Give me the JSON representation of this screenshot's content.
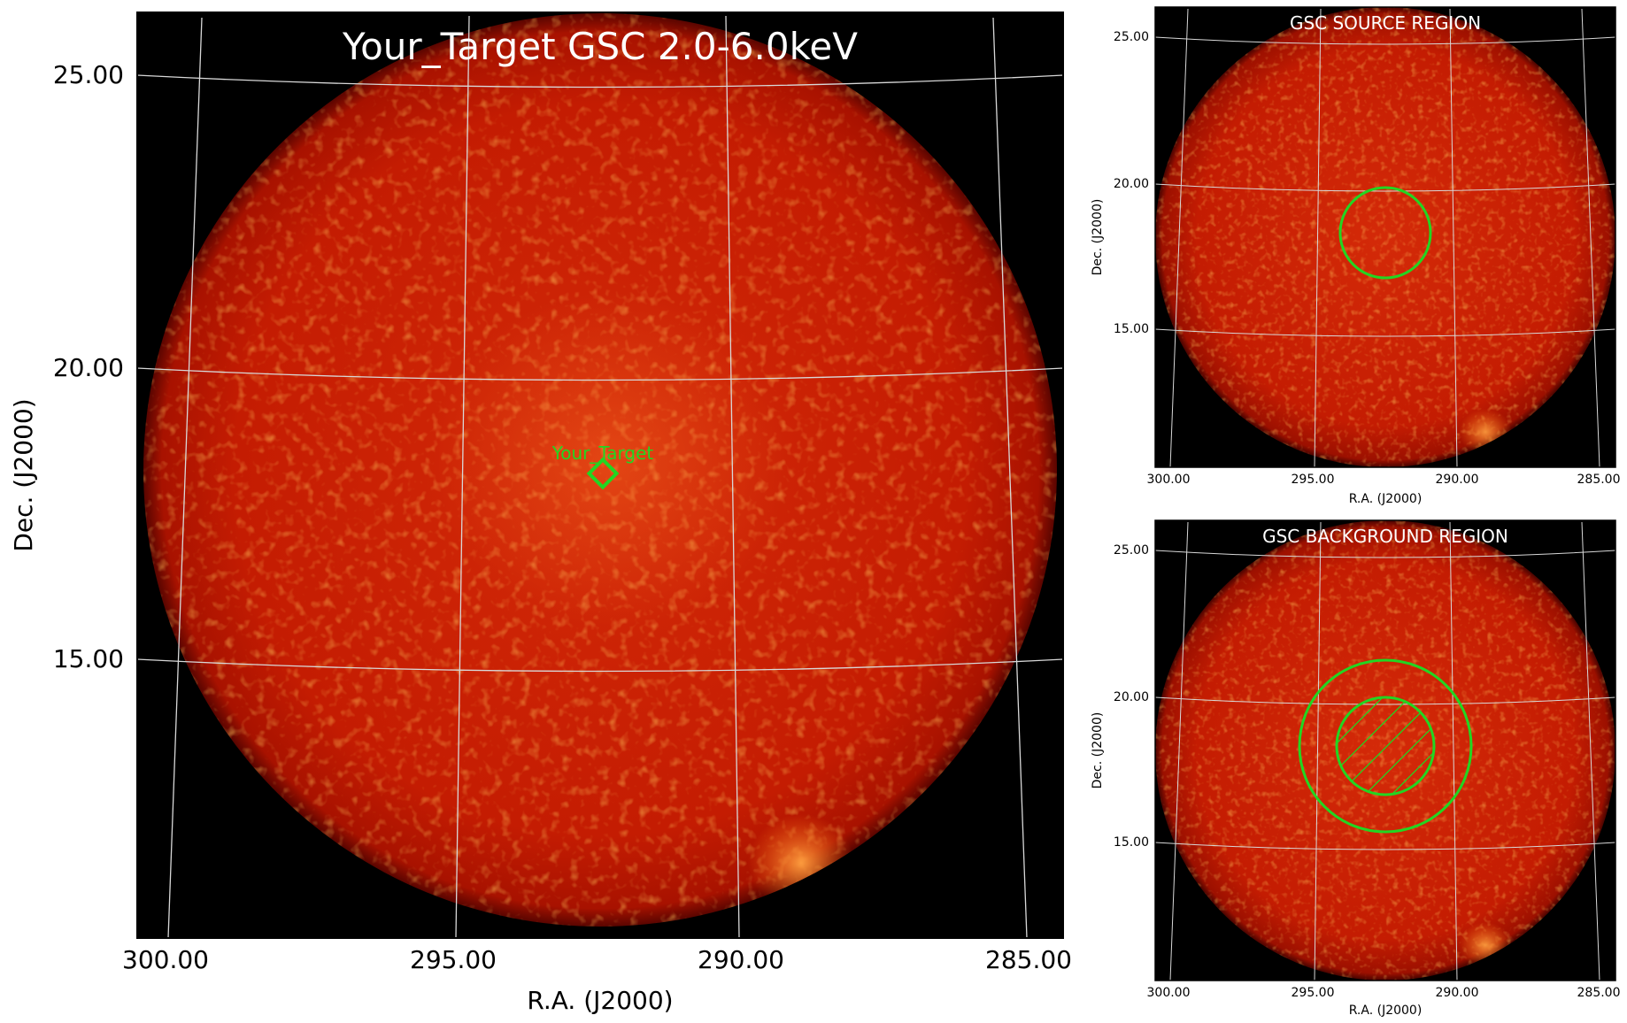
{
  "main": {
    "title": "Your_Target GSC 2.0-6.0keV",
    "target_label": "Your_Target",
    "xlabel": "R.A. (J2000)",
    "ylabel": "Dec. (J2000)",
    "xticks": [
      "300.00",
      "295.00",
      "290.00",
      "285.00"
    ],
    "yticks": [
      "25.00",
      "20.00",
      "15.00"
    ]
  },
  "source_panel": {
    "title": "GSC SOURCE REGION",
    "xlabel": "R.A. (J2000)",
    "ylabel": "Dec. (J2000)",
    "xticks": [
      "300.00",
      "295.00",
      "290.00",
      "285.00"
    ],
    "yticks": [
      "25.00",
      "20.00",
      "15.00"
    ]
  },
  "background_panel": {
    "title": "GSC BACKGROUND REGION",
    "xlabel": "R.A. (J2000)",
    "ylabel": "Dec. (J2000)",
    "xticks": [
      "300.00",
      "295.00",
      "290.00",
      "285.00"
    ],
    "yticks": [
      "25.00",
      "20.00",
      "15.00"
    ]
  },
  "colors": {
    "sky_disk": "#c01800",
    "frame_bg": "#000000",
    "region_green": "#22d622",
    "grid": "#d8d8d8"
  }
}
